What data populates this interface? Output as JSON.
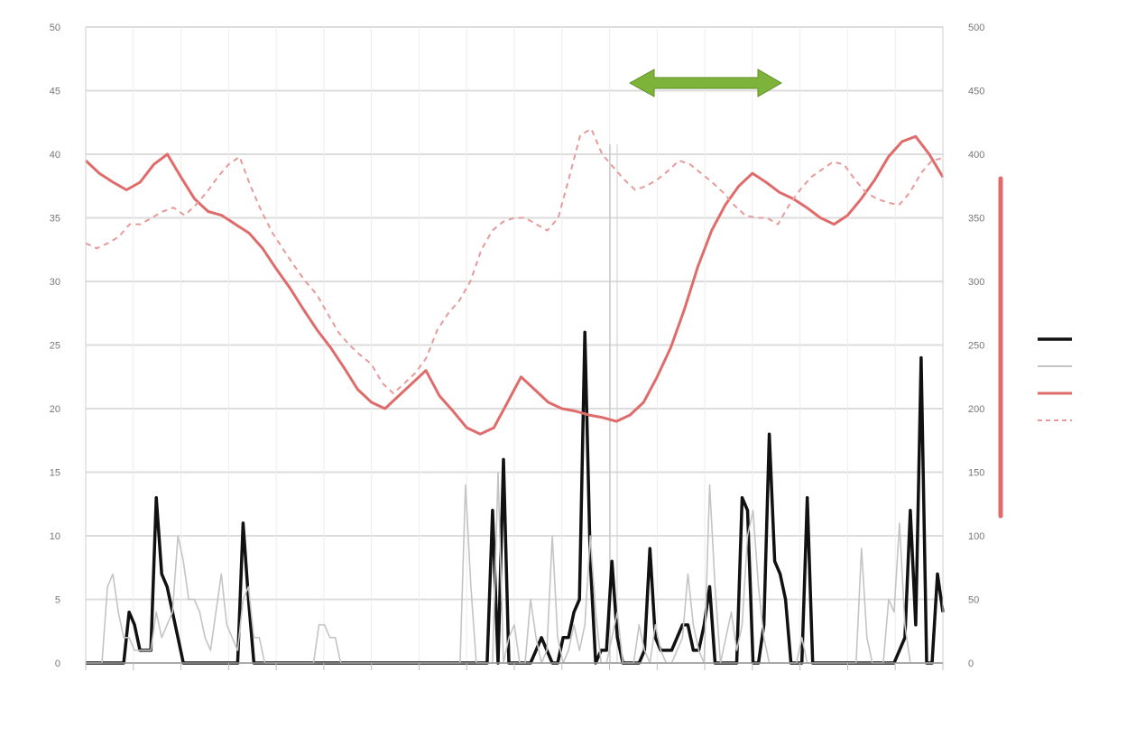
{
  "chart_data": {
    "type": "line",
    "title": "",
    "xlabel": "",
    "ylabel": "",
    "grid": true,
    "legend_position": "right",
    "annotation": "",
    "x_tick_labels": [],
    "left_axis": {
      "ylim": [
        0,
        50
      ],
      "ticks": [
        0,
        5,
        10,
        15,
        20,
        25,
        30,
        35,
        40,
        45,
        50
      ]
    },
    "right_axis": {
      "ylim": [
        0,
        500
      ],
      "ticks": [
        0,
        50,
        100,
        150,
        200,
        250,
        300,
        350,
        400,
        450,
        500
      ]
    },
    "series": [
      {
        "axis": "left",
        "color": "#111111",
        "style": "solid-bold",
        "values": [
          0,
          0,
          0,
          0,
          0,
          0,
          0,
          0,
          4,
          3,
          1,
          1,
          1,
          13,
          7,
          6,
          4,
          2,
          0,
          0,
          0,
          0,
          0,
          0,
          0,
          0,
          0,
          0,
          0,
          11,
          5,
          0,
          0,
          0,
          0,
          0,
          0,
          0,
          0,
          0,
          0,
          0,
          0,
          0,
          0,
          0,
          0,
          0,
          0,
          0,
          0,
          0,
          0,
          0,
          0,
          0,
          0,
          0,
          0,
          0,
          0,
          0,
          0,
          0,
          0,
          0,
          0,
          0,
          0,
          0,
          0,
          0,
          0,
          0,
          0,
          12,
          0,
          16,
          0,
          0,
          0,
          0,
          0,
          1,
          2,
          1,
          0,
          0,
          2,
          2,
          4,
          5,
          26,
          8,
          0,
          1,
          1,
          8,
          2,
          0,
          0,
          0,
          0,
          1,
          9,
          2,
          1,
          1,
          1,
          2,
          3,
          3,
          1,
          1,
          3,
          6,
          0,
          0,
          0,
          0,
          0,
          13,
          12,
          0,
          0,
          3,
          18,
          8,
          7,
          5,
          0,
          0,
          0,
          13,
          0,
          0,
          0,
          0,
          0,
          0,
          0,
          0,
          0,
          0,
          0,
          0,
          0,
          0,
          0,
          0,
          1,
          2,
          12,
          3,
          24,
          0,
          0,
          7,
          4
        ]
      },
      {
        "axis": "left",
        "color": "#c4c4c4",
        "style": "solid-thin",
        "values": [
          0,
          0,
          0,
          0,
          6,
          7,
          4,
          2,
          2,
          1,
          1,
          1,
          1,
          4,
          2,
          3,
          4,
          10,
          8,
          5,
          5,
          4,
          2,
          1,
          4,
          7,
          3,
          2,
          1,
          5,
          6,
          2,
          2,
          0,
          0,
          0,
          0,
          0,
          0,
          0,
          0,
          0,
          0,
          3,
          3,
          2,
          2,
          0,
          0,
          0,
          0,
          0,
          0,
          0,
          0,
          0,
          0,
          0,
          0,
          0,
          0,
          0,
          0,
          0,
          0,
          0,
          0,
          0,
          0,
          0,
          14,
          6,
          0,
          0,
          0,
          0,
          15,
          0,
          2,
          3,
          0,
          0,
          5,
          2,
          0,
          1,
          10,
          2,
          0,
          1,
          3,
          1,
          3,
          10,
          4,
          0,
          0,
          2,
          4,
          0,
          0,
          0,
          3,
          1,
          0,
          3,
          1,
          0,
          0,
          1,
          2,
          7,
          3,
          1,
          0,
          14,
          6,
          0,
          2,
          4,
          1,
          3,
          10,
          12,
          6,
          2,
          0,
          0,
          0,
          0,
          0,
          0,
          2,
          0,
          0,
          0,
          0,
          0,
          0,
          0,
          0,
          0,
          0,
          9,
          2,
          0,
          0,
          0,
          5,
          4,
          11,
          3,
          0,
          0,
          0,
          0,
          0,
          0,
          0
        ]
      },
      {
        "axis": "right",
        "color": "#e06b6b",
        "style": "solid-thick",
        "values": [
          395,
          385,
          378,
          372,
          378,
          392,
          400,
          382,
          365,
          355,
          352,
          345,
          338,
          326,
          310,
          295,
          278,
          262,
          248,
          232,
          215,
          205,
          200,
          210,
          220,
          230,
          210,
          198,
          185,
          180,
          185,
          205,
          225,
          215,
          205,
          200,
          198,
          195,
          193,
          190,
          195,
          205,
          225,
          248,
          278,
          312,
          340,
          360,
          375,
          385,
          378,
          370,
          365,
          358,
          350,
          345,
          352,
          365,
          380,
          398,
          410,
          414,
          400,
          382
        ]
      },
      {
        "axis": "right",
        "color": "#e89a9a",
        "style": "dashed",
        "values": [
          330,
          326,
          330,
          335,
          345,
          345,
          350,
          355,
          358,
          352,
          360,
          370,
          382,
          392,
          398,
          375,
          355,
          338,
          325,
          312,
          300,
          290,
          275,
          260,
          250,
          242,
          235,
          220,
          212,
          220,
          228,
          240,
          262,
          275,
          285,
          300,
          325,
          340,
          347,
          350,
          350,
          345,
          340,
          350,
          382,
          415,
          420,
          400,
          390,
          380,
          372,
          375,
          380,
          387,
          395,
          392,
          385,
          378,
          370,
          360,
          352,
          350,
          350,
          345,
          360,
          372,
          382,
          388,
          394,
          392,
          380,
          370,
          365,
          362,
          360,
          370,
          385,
          395,
          397
        ]
      }
    ]
  }
}
